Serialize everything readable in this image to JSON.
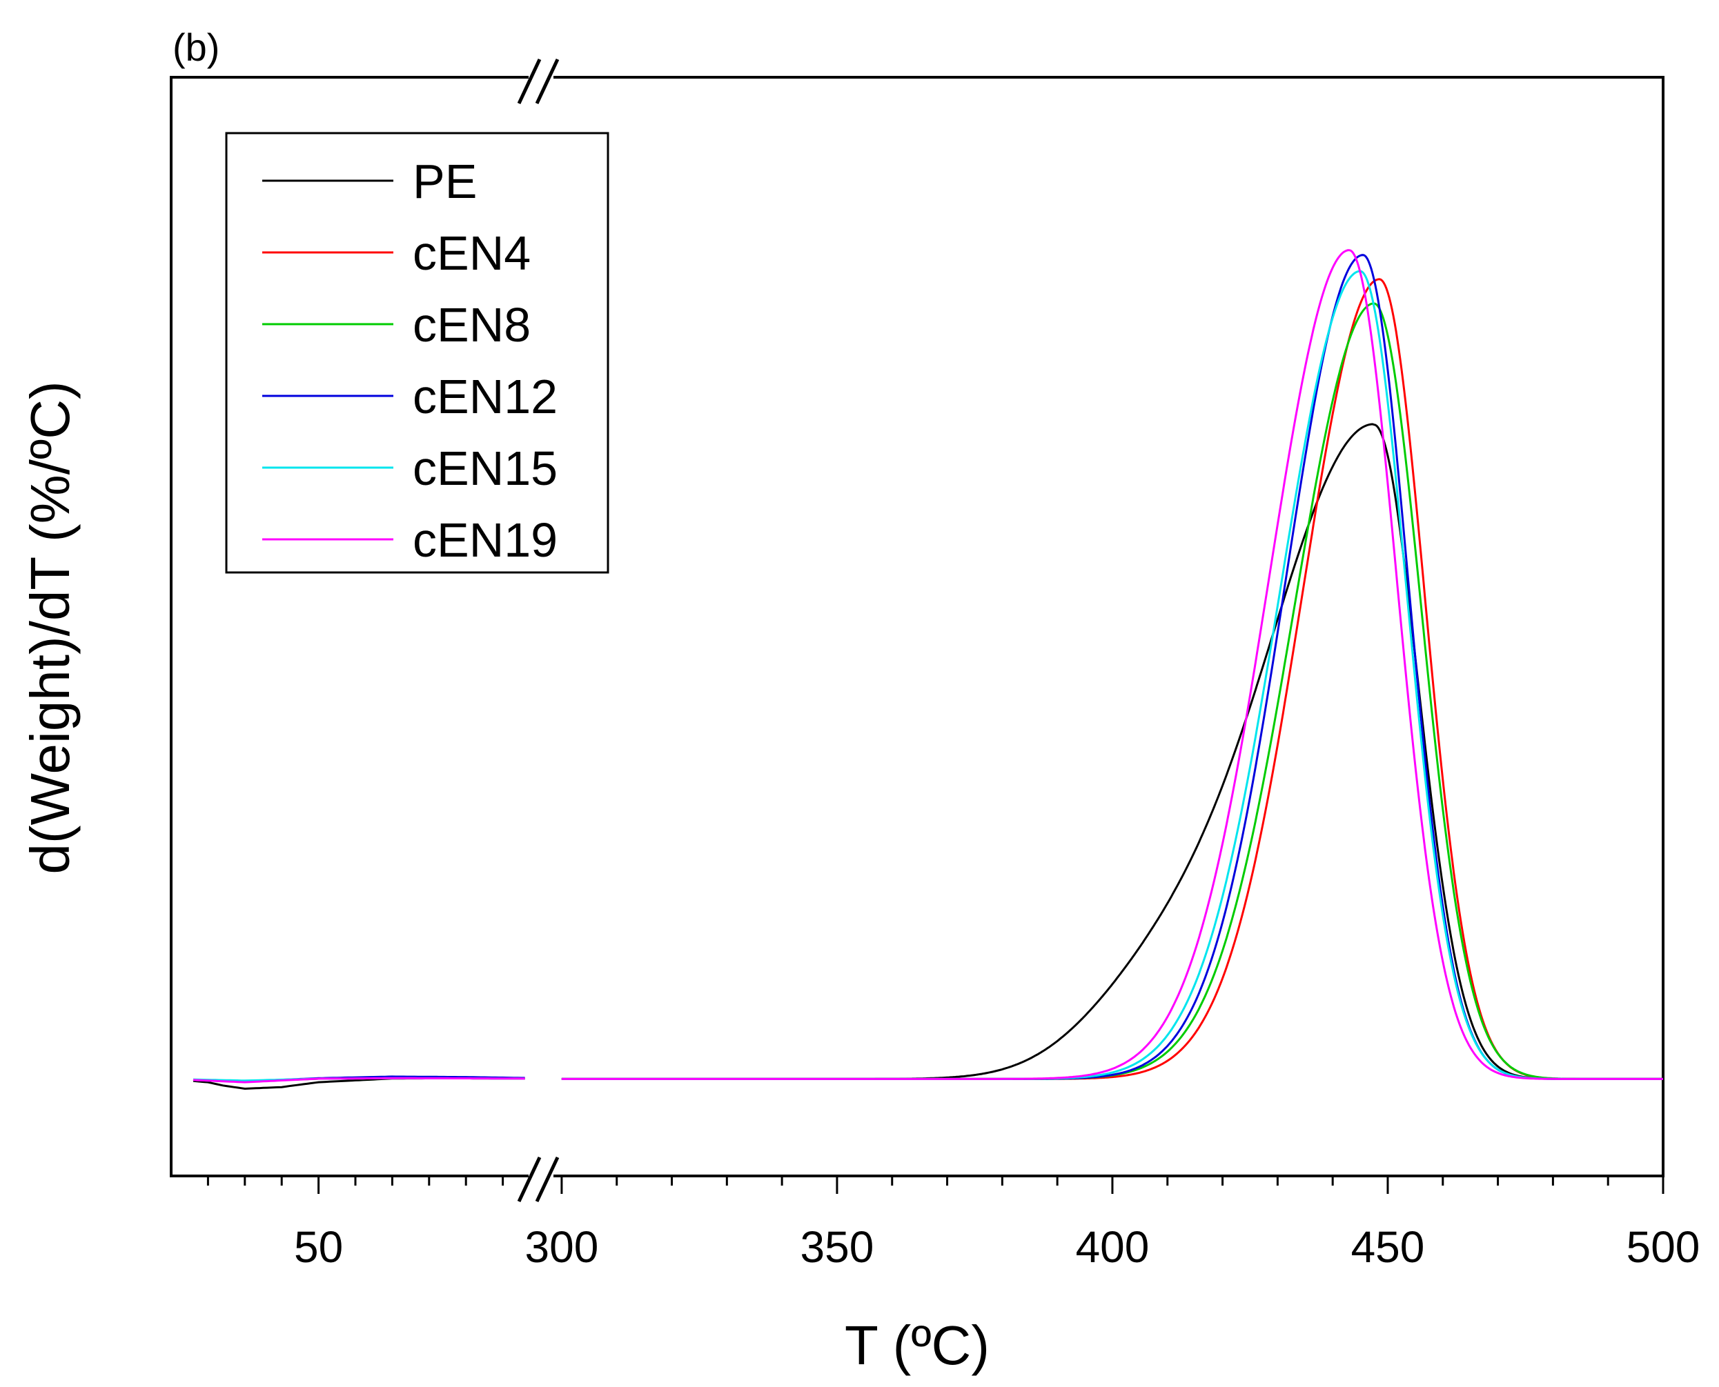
{
  "chart_data": {
    "type": "line",
    "panel_label": "(b)",
    "xlabel": "T (ºC)",
    "ylabel": "d(Weight)/dT (%/ºC)",
    "axis_break": {
      "from": 80,
      "to": 296
    },
    "x_segments": [
      {
        "xlim": [
          30,
          80
        ],
        "ticks": [
          50
        ]
      },
      {
        "xlim": [
          296,
          500
        ],
        "ticks": [
          300,
          350,
          400,
          450,
          500
        ]
      }
    ],
    "tick_labels": [
      "50",
      "300",
      "350",
      "400",
      "450",
      "500"
    ],
    "ylim": [
      -0.06,
      0.62
    ],
    "y_ticks_labeled": false,
    "legend": {
      "position": "top-left",
      "entries": [
        "PE",
        "cEN4",
        "cEN8",
        "cEN12",
        "cEN15",
        "cEN19"
      ]
    },
    "series": [
      {
        "name": "PE",
        "color": "#000000",
        "low_x": [
          30,
          35,
          37,
          40,
          45,
          50,
          60,
          70,
          80
        ],
        "low_y": [
          0,
          -0.002,
          -0.004,
          -0.006,
          -0.005,
          -0.002,
          0.0003,
          0.0005,
          0.0003
        ],
        "peak_height": 0.405,
        "peak_x": 447.5,
        "sigma_left": 20,
        "sigma_right": 8,
        "tail_amp": 0.04,
        "tail_x": 407,
        "tail_sigma": 13
      },
      {
        "name": "cEN4",
        "color": "#ff0000",
        "low_x": [
          30,
          35,
          40,
          50,
          60,
          70,
          80
        ],
        "low_y": [
          0,
          -0.001,
          -0.0015,
          0.0002,
          0.0005,
          0.0004,
          0.0002
        ],
        "peak_height": 0.495,
        "peak_x": 448.5,
        "sigma_left": 14,
        "sigma_right": 8.2,
        "tail_amp": 0,
        "tail_x": 400,
        "tail_sigma": 10
      },
      {
        "name": "cEN8",
        "color": "#00cc00",
        "low_x": [
          30,
          35,
          40,
          50,
          60,
          70,
          80
        ],
        "low_y": [
          0,
          -0.001,
          -0.0015,
          0.0002,
          0.0005,
          0.0004,
          0.0002
        ],
        "peak_height": 0.48,
        "peak_x": 447.5,
        "sigma_left": 14.5,
        "sigma_right": 8.6,
        "tail_amp": 0,
        "tail_x": 400,
        "tail_sigma": 10
      },
      {
        "name": "cEN12",
        "color": "#0000dd",
        "low_x": [
          30,
          35,
          40,
          50,
          60,
          70,
          80
        ],
        "low_y": [
          0,
          -0.001,
          -0.0015,
          0.0005,
          0.0015,
          0.0012,
          0.0005
        ],
        "peak_height": 0.51,
        "peak_x": 445.5,
        "sigma_left": 14,
        "sigma_right": 8.2,
        "tail_amp": 0,
        "tail_x": 400,
        "tail_sigma": 10
      },
      {
        "name": "cEN15",
        "color": "#00e5ee",
        "low_x": [
          30,
          35,
          40,
          50,
          60,
          70,
          80
        ],
        "low_y": [
          0,
          -0.0005,
          -0.001,
          0.0002,
          0.0005,
          0.0004,
          0.0002
        ],
        "peak_height": 0.5,
        "peak_x": 445,
        "sigma_left": 14.5,
        "sigma_right": 8.4,
        "tail_amp": 0,
        "tail_x": 400,
        "tail_sigma": 10
      },
      {
        "name": "cEN19",
        "color": "#ff00ff",
        "low_x": [
          30,
          35,
          40,
          50,
          60,
          70,
          80
        ],
        "low_y": [
          0,
          -0.001,
          -0.002,
          0.0002,
          0.0005,
          0.0004,
          0.0002
        ],
        "peak_height": 0.513,
        "peak_x": 443,
        "sigma_left": 14.5,
        "sigma_right": 8.6,
        "tail_amp": 0,
        "tail_x": 400,
        "tail_sigma": 10
      }
    ]
  }
}
